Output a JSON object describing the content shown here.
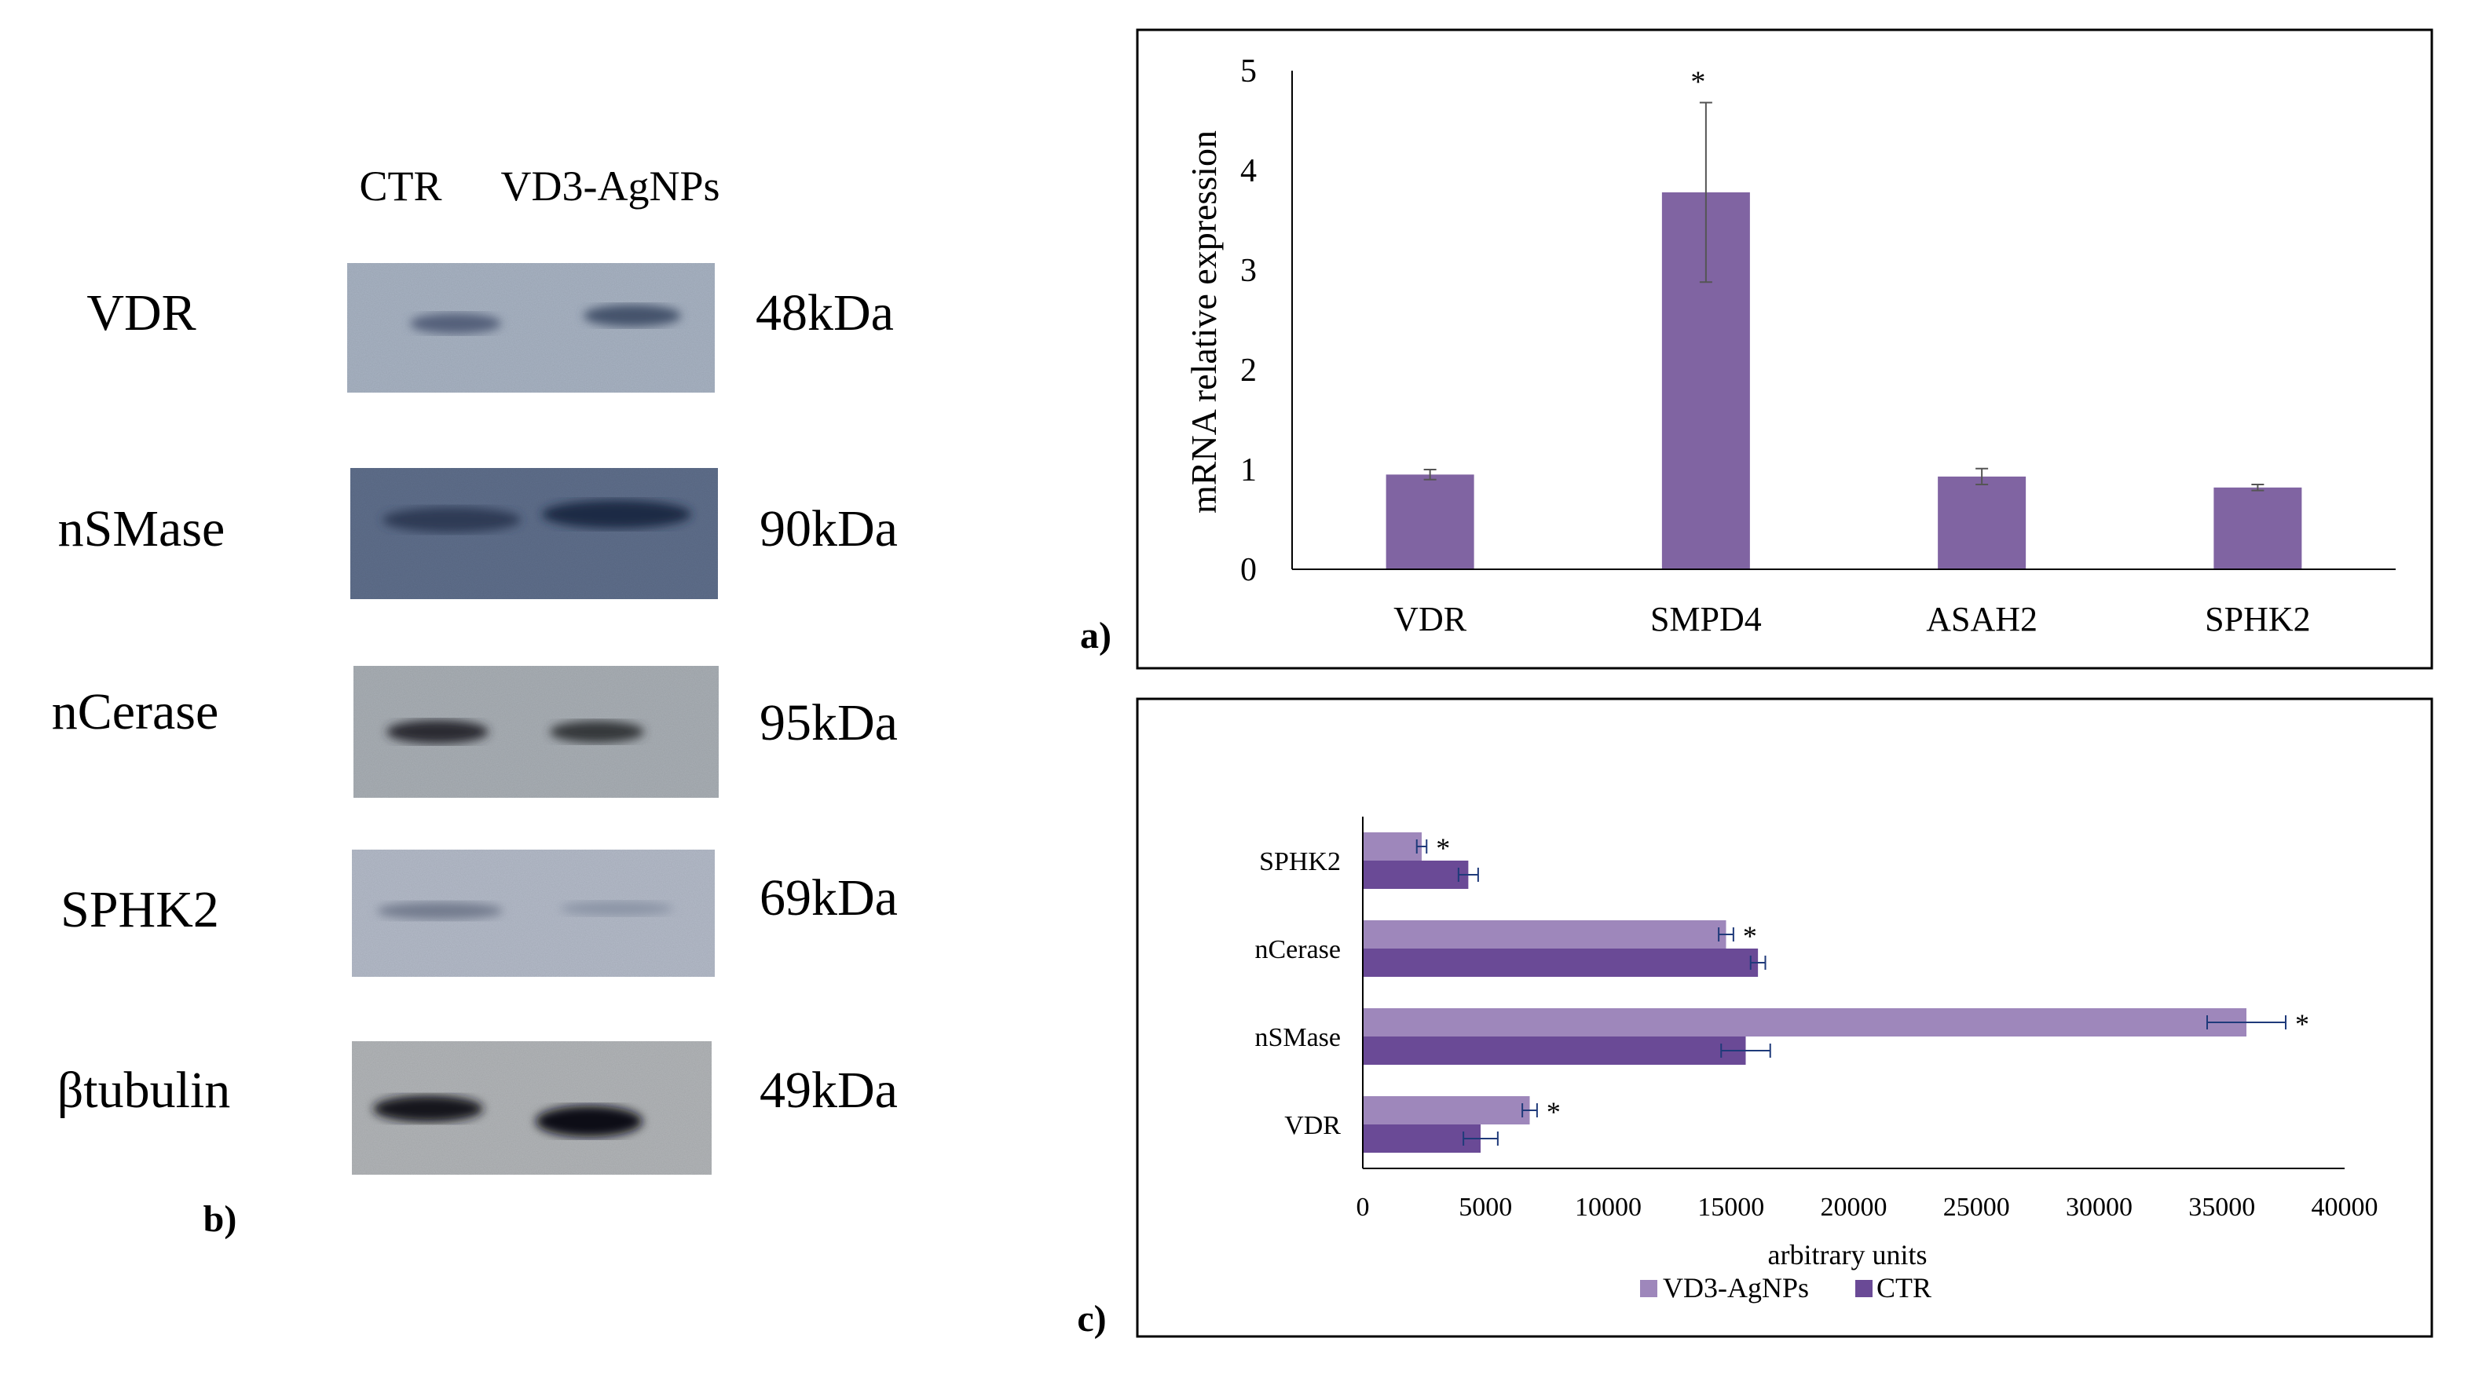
{
  "blot": {
    "lane_labels": [
      "CTR",
      "VD3-AgNPs"
    ],
    "rows": [
      {
        "protein": "VDR",
        "size": "48kDa"
      },
      {
        "protein": "nSMase",
        "size": "90kDa"
      },
      {
        "protein": "nCerase",
        "size": "95kDa"
      },
      {
        "protein": "SPHK2",
        "size": "69kDa"
      },
      {
        "protein": "βtubulin",
        "size": "49kDa"
      }
    ],
    "panel_label": "b)"
  },
  "colors": {
    "bar_a": "#8064a2",
    "bar_light": "#9e87bb",
    "bar_dark": "#6a4a96",
    "axis": "#000000",
    "error": "#1f3a7a"
  },
  "chart_data": [
    {
      "type": "bar",
      "panel_label": "a)",
      "title": "",
      "ylabel": "mRNA relative expression",
      "xlabel": "",
      "categories": [
        "VDR",
        "SMPD4",
        "ASAH2",
        "SPHK2"
      ],
      "values": [
        0.95,
        3.78,
        0.93,
        0.82
      ],
      "errors": [
        0.05,
        0.9,
        0.08,
        0.03
      ],
      "significance": [
        "",
        "*",
        "",
        ""
      ],
      "ylim": [
        0,
        5
      ],
      "yticks": [
        "0",
        "1",
        "2",
        "3",
        "4",
        "5"
      ],
      "grid": false
    },
    {
      "type": "bar",
      "orientation": "horizontal",
      "panel_label": "c)",
      "title": "",
      "xlabel": "arbitrary units",
      "ylabel": "",
      "categories": [
        "SPHK2",
        "nCerase",
        "nSMase",
        "VDR"
      ],
      "series": [
        {
          "name": "VD3-AgNPs",
          "values": [
            2400,
            14800,
            36000,
            6800
          ],
          "errors": [
            200,
            300,
            1600,
            300
          ],
          "significance": [
            "*",
            "*",
            "*",
            "*"
          ]
        },
        {
          "name": "CTR",
          "values": [
            4300,
            16100,
            15600,
            4800
          ],
          "errors": [
            400,
            300,
            1000,
            700
          ],
          "significance": [
            "",
            "",
            "",
            ""
          ]
        }
      ],
      "legend": [
        "VD3-AgNPs",
        "CTR"
      ],
      "xlim": [
        0,
        40000
      ],
      "xticks": [
        "0",
        "5000",
        "10000",
        "15000",
        "20000",
        "25000",
        "30000",
        "35000",
        "40000"
      ],
      "grid": false
    }
  ]
}
